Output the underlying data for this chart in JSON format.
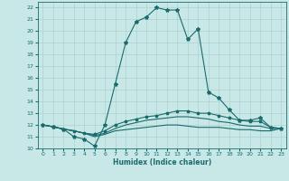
{
  "xlabel": "Humidex (Indice chaleur)",
  "background_color": "#c8e8e8",
  "grid_color": "#b0d0d0",
  "line_color": "#1a6b6b",
  "xlim": [
    -0.5,
    23.5
  ],
  "ylim": [
    10,
    22.5
  ],
  "yticks": [
    10,
    11,
    12,
    13,
    14,
    15,
    16,
    17,
    18,
    19,
    20,
    21,
    22
  ],
  "xticks": [
    0,
    1,
    2,
    3,
    4,
    5,
    6,
    7,
    8,
    9,
    10,
    11,
    12,
    13,
    14,
    15,
    16,
    17,
    18,
    19,
    20,
    21,
    22,
    23
  ],
  "line1_x": [
    0,
    1,
    2,
    3,
    4,
    5,
    6,
    7,
    8,
    9,
    10,
    11,
    12,
    13,
    14,
    15,
    16,
    17,
    18,
    19,
    20,
    21,
    22,
    23
  ],
  "line1_y": [
    12.0,
    11.85,
    11.65,
    11.0,
    10.8,
    10.2,
    12.0,
    15.5,
    19.0,
    20.8,
    21.2,
    22.0,
    21.8,
    21.8,
    19.3,
    20.2,
    14.8,
    14.3,
    13.3,
    12.4,
    12.4,
    12.6,
    11.8,
    11.7
  ],
  "line2_x": [
    0,
    1,
    2,
    3,
    4,
    5,
    6,
    7,
    8,
    9,
    10,
    11,
    12,
    13,
    14,
    15,
    16,
    17,
    18,
    19,
    20,
    21,
    22,
    23
  ],
  "line2_y": [
    12.0,
    11.85,
    11.65,
    11.5,
    11.3,
    11.2,
    11.5,
    12.0,
    12.3,
    12.5,
    12.7,
    12.8,
    13.0,
    13.2,
    13.2,
    13.0,
    13.0,
    12.8,
    12.6,
    12.4,
    12.3,
    12.3,
    11.8,
    11.7
  ],
  "line3_x": [
    0,
    1,
    2,
    3,
    4,
    5,
    6,
    7,
    8,
    9,
    10,
    11,
    12,
    13,
    14,
    15,
    16,
    17,
    18,
    19,
    20,
    21,
    22,
    23
  ],
  "line3_y": [
    12.0,
    11.85,
    11.65,
    11.5,
    11.3,
    11.0,
    11.2,
    11.5,
    11.6,
    11.7,
    11.8,
    11.9,
    12.0,
    12.0,
    11.9,
    11.8,
    11.8,
    11.8,
    11.7,
    11.6,
    11.6,
    11.5,
    11.5,
    11.7
  ],
  "line4_x": [
    0,
    1,
    2,
    3,
    4,
    5,
    6,
    7,
    8,
    9,
    10,
    11,
    12,
    13,
    14,
    15,
    16,
    17,
    18,
    19,
    20,
    21,
    22,
    23
  ],
  "line4_y": [
    12.0,
    11.85,
    11.65,
    11.5,
    11.3,
    11.1,
    11.3,
    11.7,
    12.0,
    12.2,
    12.4,
    12.5,
    12.6,
    12.7,
    12.7,
    12.6,
    12.5,
    12.3,
    12.2,
    12.0,
    11.9,
    11.9,
    11.7,
    11.7
  ]
}
